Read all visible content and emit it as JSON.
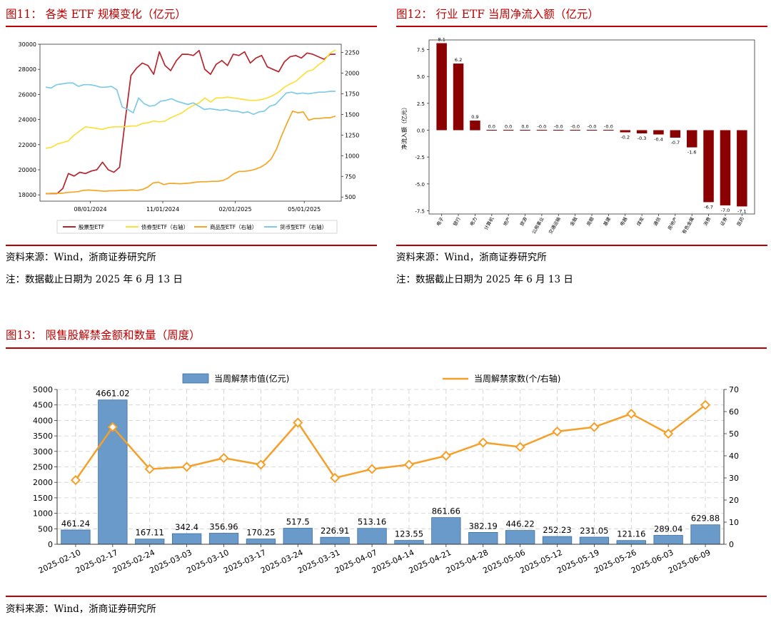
{
  "fig11": {
    "title": "图11：  各类 ETF 规模变化（亿元）",
    "source": "资料来源：Wind，浙商证券研究所",
    "note": "注：数据截止日期为 2025 年 6 月 13 日",
    "chart_data": {
      "type": "line",
      "x_tick_labels": [
        "08/01/2024",
        "11/01/2024",
        "02/01/2025",
        "05/01/2025"
      ],
      "left_axis": {
        "ylim": [
          17500,
          30000
        ],
        "ticks": [
          18000,
          20000,
          22000,
          24000,
          26000,
          28000,
          30000
        ]
      },
      "right_axis": {
        "ylim": [
          450,
          2350
        ],
        "ticks": [
          500,
          750,
          1000,
          1250,
          1500,
          1750,
          2000,
          2250
        ]
      },
      "series": [
        {
          "name": "股票型ETF",
          "axis": "left",
          "color": "#b5252e",
          "values": [
            18100,
            18100,
            18100,
            18500,
            19700,
            19500,
            19800,
            19700,
            19900,
            20000,
            20600,
            20000,
            19800,
            20200,
            24000,
            27500,
            28100,
            28500,
            28300,
            27600,
            29400,
            28300,
            27900,
            28700,
            29200,
            29200,
            29100,
            29500,
            28000,
            27600,
            28400,
            28700,
            28300,
            29200,
            29100,
            29400,
            28500,
            28900,
            29100,
            28200,
            28000,
            27800,
            28600,
            29000,
            29100,
            28900,
            29300,
            29200,
            29000,
            28800,
            29200,
            29200
          ]
        },
        {
          "name": "债券型ETF（右轴）",
          "axis": "right",
          "color": "#fce039",
          "values": [
            1090,
            1100,
            1140,
            1160,
            1180,
            1250,
            1300,
            1350,
            1340,
            1330,
            1320,
            1340,
            1350,
            1350,
            1350,
            1360,
            1360,
            1390,
            1400,
            1420,
            1410,
            1420,
            1460,
            1490,
            1520,
            1570,
            1610,
            1640,
            1700,
            1650,
            1700,
            1700,
            1710,
            1700,
            1690,
            1680,
            1670,
            1670,
            1680,
            1700,
            1730,
            1770,
            1830,
            1870,
            1900,
            1960,
            2020,
            2040,
            2100,
            2150,
            2240,
            2280
          ]
        },
        {
          "name": "商品型ETF（右轴）",
          "axis": "right",
          "color": "#f5a623",
          "values": [
            540,
            545,
            545,
            545,
            555,
            560,
            565,
            580,
            585,
            580,
            575,
            570,
            575,
            575,
            580,
            580,
            585,
            580,
            590,
            620,
            670,
            680,
            650,
            665,
            665,
            660,
            665,
            670,
            680,
            685,
            685,
            690,
            690,
            700,
            730,
            780,
            810,
            810,
            820,
            835,
            860,
            900,
            960,
            1080,
            1250,
            1400,
            1540,
            1520,
            1530,
            1430,
            1450,
            1450,
            1460,
            1460,
            1480
          ]
        },
        {
          "name": "货币型ETF（右轴）",
          "axis": "right",
          "color": "#7ecbe6",
          "values": [
            1830,
            1820,
            1860,
            1870,
            1880,
            1880,
            1840,
            1860,
            1860,
            1850,
            1830,
            1830,
            1840,
            1800,
            1590,
            1560,
            1520,
            1700,
            1630,
            1600,
            1610,
            1660,
            1670,
            1690,
            1660,
            1640,
            1620,
            1640,
            1600,
            1560,
            1570,
            1560,
            1550,
            1560,
            1540,
            1540,
            1520,
            1530,
            1500,
            1530,
            1540,
            1600,
            1620,
            1690,
            1760,
            1770,
            1750,
            1760,
            1750,
            1760,
            1770,
            1770,
            1780,
            1780
          ]
        }
      ]
    }
  },
  "fig12": {
    "title": "图12：  行业 ETF 当周净流入额（亿元）",
    "source": "资料来源：Wind，浙商证券研究所",
    "note": "注：数据截止日期为 2025 年 6 月 13 日",
    "chart_data": {
      "type": "bar",
      "ylabel": "净流入额（亿元）",
      "ylim": [
        -7.8,
        8.4
      ],
      "y_ticks": [
        -7.5,
        -5.0,
        -2.5,
        0.0,
        2.5,
        5.0,
        7.5
      ],
      "y_tick_labels": [
        "-7.5",
        "-5.0",
        "-2.5",
        "0.0",
        "2.5",
        "5.0",
        "7.5"
      ],
      "categories": [
        "电子",
        "银行",
        "电力",
        "计算机",
        "地产",
        "旅游",
        "公用事业",
        "交通运输",
        "金融",
        "周期",
        "基建",
        "电器",
        "煤炭",
        "通信",
        "房地产",
        "有色金属",
        "消费",
        "证券",
        "医药"
      ],
      "values": [
        8.1,
        6.2,
        0.9,
        0.0,
        0.0,
        0.0,
        -0.0,
        -0.0,
        -0.0,
        -0.0,
        -0.0,
        -0.2,
        -0.3,
        -0.4,
        -0.7,
        -1.6,
        -6.7,
        -7.0,
        -7.1
      ],
      "value_labels": [
        "8.1",
        "6.2",
        "0.9",
        "0.0",
        "0.0",
        "0.0",
        "-0.0",
        "-0.0",
        "-0.0",
        "-0.0",
        "-0.0",
        "-0.2",
        "-0.3",
        "-0.4",
        "-0.7",
        "-1.6",
        "-6.7",
        "-7.0",
        "-7.1"
      ],
      "bar_color": "#8b0000"
    }
  },
  "fig13": {
    "title": "图13：  限售股解禁金额和数量（周度）",
    "source": "资料来源：Wind，浙商证券研究所",
    "chart_data": {
      "type": "bar",
      "categories": [
        "2025-02-10",
        "2025-02-17",
        "2025-02-24",
        "2025-03-03",
        "2025-03-10",
        "2025-03-17",
        "2025-03-24",
        "2025-03-31",
        "2025-04-07",
        "2025-04-14",
        "2025-04-21",
        "2025-04-28",
        "2025-05-06",
        "2025-05-12",
        "2025-05-19",
        "2025-05-26",
        "2025-06-03",
        "2025-06-09"
      ],
      "series": [
        {
          "name": "当周解禁市值(亿元)",
          "type": "bar",
          "axis": "left",
          "color": "#6a9ac9",
          "values": [
            461.24,
            4661.02,
            167.11,
            342.4,
            356.96,
            170.25,
            517.5,
            226.91,
            513.16,
            123.55,
            861.66,
            382.19,
            446.22,
            252.23,
            231.05,
            121.16,
            289.04,
            629.88
          ],
          "value_labels": [
            "461.24",
            "4661.02",
            "167.11",
            "342.4",
            "356.96",
            "170.25",
            "517.5",
            "226.91",
            "513.16",
            "123.55",
            "861.66",
            "382.19",
            "446.22",
            "252.23",
            "231.05",
            "121.16",
            "289.04",
            "629.88"
          ]
        },
        {
          "name": "当周解禁家数(个/右轴)",
          "type": "line",
          "axis": "right",
          "color": "#f5a02a",
          "values": [
            29,
            53,
            34,
            35,
            39,
            36,
            55,
            30,
            34,
            36,
            40,
            46,
            44,
            51,
            53,
            59,
            50,
            63
          ]
        }
      ],
      "left_axis": {
        "ylim": [
          0,
          5000
        ],
        "ticks": [
          0,
          500,
          1000,
          1500,
          2000,
          2500,
          3000,
          3500,
          4000,
          4500,
          5000
        ]
      },
      "right_axis": {
        "ylim": [
          0,
          70
        ],
        "ticks": [
          0,
          10,
          20,
          30,
          40,
          50,
          60,
          70
        ]
      }
    }
  }
}
